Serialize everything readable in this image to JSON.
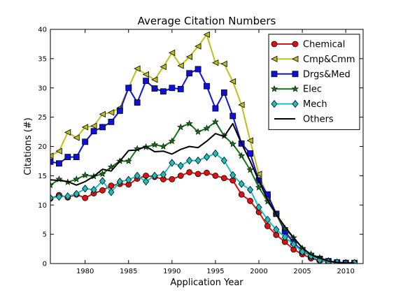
{
  "chart_data": {
    "type": "line",
    "title": "Average Citation Numbers",
    "xlabel": "Application Year",
    "ylabel": "Citations (#)",
    "xlim": [
      1976,
      2012
    ],
    "ylim": [
      0,
      40
    ],
    "xticks": [
      1980,
      1985,
      1990,
      1995,
      2000,
      2005,
      2010
    ],
    "yticks": [
      0,
      5,
      10,
      15,
      20,
      25,
      30,
      35,
      40
    ],
    "grid": false,
    "legend_position": "top-right",
    "x": [
      1976,
      1977,
      1978,
      1979,
      1980,
      1981,
      1982,
      1983,
      1984,
      1985,
      1986,
      1987,
      1988,
      1989,
      1990,
      1991,
      1992,
      1993,
      1994,
      1995,
      1996,
      1997,
      1998,
      1999,
      2000,
      2001,
      2002,
      2003,
      2004,
      2005,
      2006,
      2007,
      2008,
      2009,
      2010,
      2011
    ],
    "series": [
      {
        "name": "Chemical",
        "color": "#dd1111",
        "marker": "circle",
        "values": [
          11.1,
          11.7,
          11.3,
          11.8,
          11.2,
          12.0,
          12.5,
          13.3,
          13.6,
          13.5,
          14.5,
          15.0,
          14.8,
          14.4,
          14.4,
          15.0,
          15.6,
          15.3,
          15.5,
          15.0,
          14.6,
          14.2,
          11.8,
          10.7,
          8.8,
          6.4,
          4.9,
          3.7,
          2.4,
          1.6,
          0.9,
          0.5,
          0.3,
          0.2,
          0.1,
          0.1
        ]
      },
      {
        "name": "Cmp&Cmm",
        "color": "#bfbf1a",
        "marker": "triangle-left",
        "values": [
          18.4,
          19.2,
          22.4,
          21.5,
          23.3,
          23.5,
          25.5,
          25.8,
          26.6,
          30.1,
          33.3,
          32.3,
          31.4,
          33.6,
          36.0,
          33.8,
          35.3,
          37.1,
          39.1,
          34.3,
          34.1,
          31.1,
          27.1,
          21.0,
          15.3,
          11.3,
          8.4,
          5.4,
          3.3,
          2.3,
          1.3,
          0.7,
          0.4,
          0.2,
          0.1,
          0.1
        ]
      },
      {
        "name": "Drgs&Med",
        "color": "#1010dd",
        "marker": "square",
        "values": [
          17.4,
          17.1,
          18.2,
          18.2,
          20.8,
          22.6,
          23.3,
          24.2,
          26.1,
          30.0,
          27.5,
          31.2,
          29.9,
          29.4,
          30.0,
          29.8,
          32.5,
          33.2,
          30.3,
          26.5,
          29.2,
          25.2,
          20.5,
          18.8,
          14.2,
          11.8,
          8.5,
          5.5,
          3.6,
          2.1,
          1.3,
          0.8,
          0.4,
          0.2,
          0.1,
          0.1
        ]
      },
      {
        "name": "Elec",
        "color": "#117711",
        "marker": "star",
        "values": [
          13.4,
          14.4,
          13.9,
          14.4,
          15.1,
          14.9,
          15.3,
          16.5,
          17.5,
          17.5,
          19.6,
          19.9,
          20.3,
          20.0,
          20.9,
          23.3,
          23.9,
          22.5,
          23.1,
          24.2,
          21.8,
          20.4,
          18.4,
          16.0,
          13.0,
          10.6,
          8.4,
          6.0,
          4.4,
          2.6,
          1.6,
          1.0,
          0.5,
          0.2,
          0.1,
          0.1
        ]
      },
      {
        "name": "Mech",
        "color": "#1abfbf",
        "marker": "diamond",
        "values": [
          11.2,
          11.4,
          11.5,
          11.9,
          12.8,
          12.6,
          14.1,
          12.2,
          14.0,
          14.3,
          15.0,
          14.0,
          15.0,
          15.2,
          17.2,
          16.7,
          17.6,
          17.6,
          18.2,
          18.8,
          17.6,
          15.1,
          13.6,
          12.6,
          9.6,
          7.5,
          5.8,
          4.5,
          3.3,
          2.0,
          1.3,
          0.6,
          0.3,
          0.2,
          0.1,
          0.1
        ]
      },
      {
        "name": "Others",
        "color": "#000000",
        "marker": "none",
        "values": [
          14.3,
          14.2,
          14.0,
          13.4,
          14.0,
          14.9,
          16.1,
          15.8,
          17.5,
          19.3,
          19.4,
          20.0,
          19.1,
          19.2,
          18.7,
          19.5,
          20.0,
          19.8,
          20.9,
          22.2,
          21.7,
          23.9,
          20.5,
          17.5,
          14.1,
          10.9,
          8.4,
          6.3,
          4.4,
          2.7,
          1.5,
          0.9,
          0.4,
          0.2,
          0.1,
          0.1
        ]
      }
    ]
  }
}
